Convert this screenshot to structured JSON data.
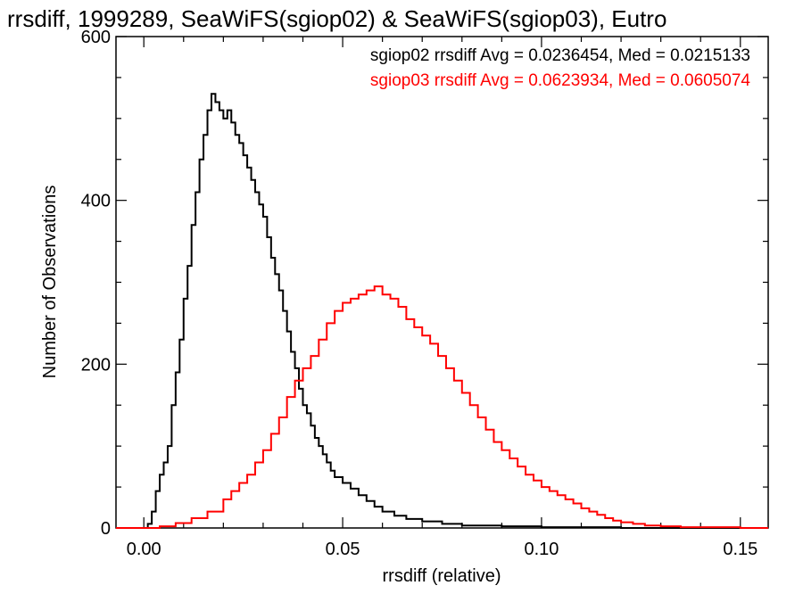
{
  "chart_data": {
    "type": "histogram",
    "title": "rrsdiff, 1999289, SeaWiFS(sgiop02) & SeaWiFS(sgiop03), Eutro",
    "xlabel": "rrsdiff (relative)",
    "ylabel": "Number of Observations",
    "xlim": [
      -0.007,
      0.157
    ],
    "ylim": [
      0,
      600
    ],
    "xticks": [
      0.0,
      0.05,
      0.1,
      0.15
    ],
    "xtick_labels": [
      "0.00",
      "0.05",
      "0.10",
      "0.15"
    ],
    "yticks": [
      0,
      200,
      400,
      600
    ],
    "ytick_labels": [
      "0",
      "200",
      "400",
      "600"
    ],
    "annotations": [
      {
        "text": "sgiop02 rrsdiff Avg = 0.0236454, Med = 0.0215133",
        "color": "#000000"
      },
      {
        "text": "sgiop03 rrsdiff Avg = 0.0623934, Med = 0.0605074",
        "color": "#ff0000"
      }
    ],
    "series": [
      {
        "color": "#000000",
        "points": [
          [
            -0.007,
            0
          ],
          [
            0.0,
            0
          ],
          [
            0.001,
            5
          ],
          [
            0.002,
            20
          ],
          [
            0.003,
            45
          ],
          [
            0.004,
            65
          ],
          [
            0.005,
            80
          ],
          [
            0.006,
            100
          ],
          [
            0.007,
            150
          ],
          [
            0.008,
            190
          ],
          [
            0.009,
            230
          ],
          [
            0.01,
            280
          ],
          [
            0.011,
            320
          ],
          [
            0.012,
            370
          ],
          [
            0.013,
            410
          ],
          [
            0.014,
            450
          ],
          [
            0.015,
            480
          ],
          [
            0.016,
            510
          ],
          [
            0.017,
            530
          ],
          [
            0.018,
            520
          ],
          [
            0.019,
            510
          ],
          [
            0.02,
            500
          ],
          [
            0.021,
            510
          ],
          [
            0.022,
            495
          ],
          [
            0.023,
            480
          ],
          [
            0.024,
            470
          ],
          [
            0.025,
            455
          ],
          [
            0.026,
            440
          ],
          [
            0.027,
            425
          ],
          [
            0.028,
            410
          ],
          [
            0.029,
            395
          ],
          [
            0.03,
            380
          ],
          [
            0.031,
            355
          ],
          [
            0.032,
            330
          ],
          [
            0.033,
            310
          ],
          [
            0.034,
            290
          ],
          [
            0.035,
            265
          ],
          [
            0.036,
            240
          ],
          [
            0.037,
            215
          ],
          [
            0.038,
            195
          ],
          [
            0.039,
            170
          ],
          [
            0.04,
            150
          ],
          [
            0.041,
            140
          ],
          [
            0.042,
            125
          ],
          [
            0.043,
            110
          ],
          [
            0.044,
            100
          ],
          [
            0.045,
            90
          ],
          [
            0.046,
            80
          ],
          [
            0.047,
            70
          ],
          [
            0.048,
            62
          ],
          [
            0.05,
            55
          ],
          [
            0.052,
            48
          ],
          [
            0.054,
            40
          ],
          [
            0.056,
            33
          ],
          [
            0.058,
            26
          ],
          [
            0.06,
            20
          ],
          [
            0.063,
            15
          ],
          [
            0.066,
            11
          ],
          [
            0.07,
            8
          ],
          [
            0.075,
            5
          ],
          [
            0.08,
            3
          ],
          [
            0.09,
            2
          ],
          [
            0.1,
            1
          ],
          [
            0.11,
            1
          ],
          [
            0.12,
            0
          ],
          [
            0.157,
            0
          ]
        ]
      },
      {
        "color": "#ff0000",
        "points": [
          [
            -0.007,
            0
          ],
          [
            0.0,
            0
          ],
          [
            0.004,
            2
          ],
          [
            0.008,
            6
          ],
          [
            0.012,
            12
          ],
          [
            0.016,
            20
          ],
          [
            0.02,
            35
          ],
          [
            0.022,
            45
          ],
          [
            0.024,
            55
          ],
          [
            0.026,
            65
          ],
          [
            0.028,
            80
          ],
          [
            0.03,
            95
          ],
          [
            0.032,
            115
          ],
          [
            0.034,
            135
          ],
          [
            0.036,
            160
          ],
          [
            0.038,
            180
          ],
          [
            0.04,
            195
          ],
          [
            0.042,
            210
          ],
          [
            0.044,
            230
          ],
          [
            0.046,
            250
          ],
          [
            0.048,
            265
          ],
          [
            0.05,
            275
          ],
          [
            0.052,
            280
          ],
          [
            0.054,
            285
          ],
          [
            0.056,
            290
          ],
          [
            0.058,
            295
          ],
          [
            0.06,
            285
          ],
          [
            0.062,
            280
          ],
          [
            0.064,
            270
          ],
          [
            0.066,
            255
          ],
          [
            0.068,
            245
          ],
          [
            0.07,
            235
          ],
          [
            0.072,
            225
          ],
          [
            0.074,
            210
          ],
          [
            0.076,
            195
          ],
          [
            0.078,
            180
          ],
          [
            0.08,
            165
          ],
          [
            0.082,
            150
          ],
          [
            0.084,
            135
          ],
          [
            0.086,
            120
          ],
          [
            0.088,
            105
          ],
          [
            0.09,
            95
          ],
          [
            0.092,
            85
          ],
          [
            0.094,
            75
          ],
          [
            0.096,
            65
          ],
          [
            0.098,
            58
          ],
          [
            0.1,
            50
          ],
          [
            0.102,
            45
          ],
          [
            0.104,
            40
          ],
          [
            0.106,
            35
          ],
          [
            0.108,
            30
          ],
          [
            0.11,
            24
          ],
          [
            0.112,
            20
          ],
          [
            0.114,
            16
          ],
          [
            0.116,
            12
          ],
          [
            0.118,
            9
          ],
          [
            0.12,
            7
          ],
          [
            0.123,
            5
          ],
          [
            0.126,
            3
          ],
          [
            0.13,
            2
          ],
          [
            0.135,
            1
          ],
          [
            0.14,
            1
          ],
          [
            0.15,
            0
          ],
          [
            0.157,
            0
          ]
        ]
      }
    ]
  }
}
